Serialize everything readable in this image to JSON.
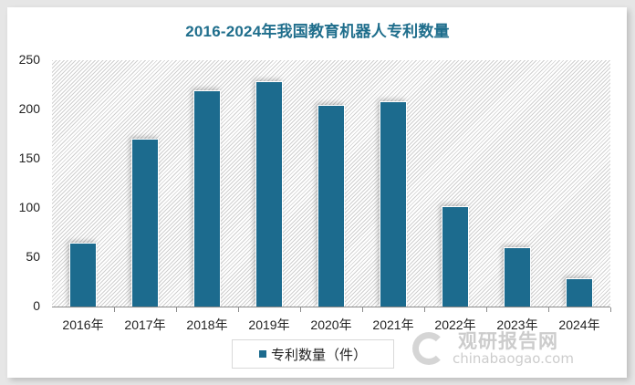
{
  "chart_data": {
    "type": "bar",
    "title": "2016-2024年我国教育机器人专利数量",
    "categories": [
      "2016年",
      "2017年",
      "2018年",
      "2019年",
      "2020年",
      "2021年",
      "2022年",
      "2023年",
      "2024年"
    ],
    "series": [
      {
        "name": "专利数量（件）",
        "values": [
          65,
          170,
          219,
          229,
          205,
          208,
          102,
          60,
          29
        ],
        "color": "#1c6b8e"
      }
    ],
    "xlabel": "",
    "ylabel": "",
    "ylim": [
      0,
      250
    ],
    "yticks": [
      "0",
      "50",
      "100",
      "150",
      "200",
      "250"
    ],
    "grid": false,
    "legend_position": "bottom"
  },
  "title": "2016-2024年我国教育机器人专利数量",
  "legend": {
    "label": "专利数量（件）"
  },
  "watermark": {
    "cn": "观研报告网",
    "en": "chinabaogao.com"
  },
  "colors": {
    "bar": "#1c6b8e",
    "title": "#1f6e8c"
  }
}
